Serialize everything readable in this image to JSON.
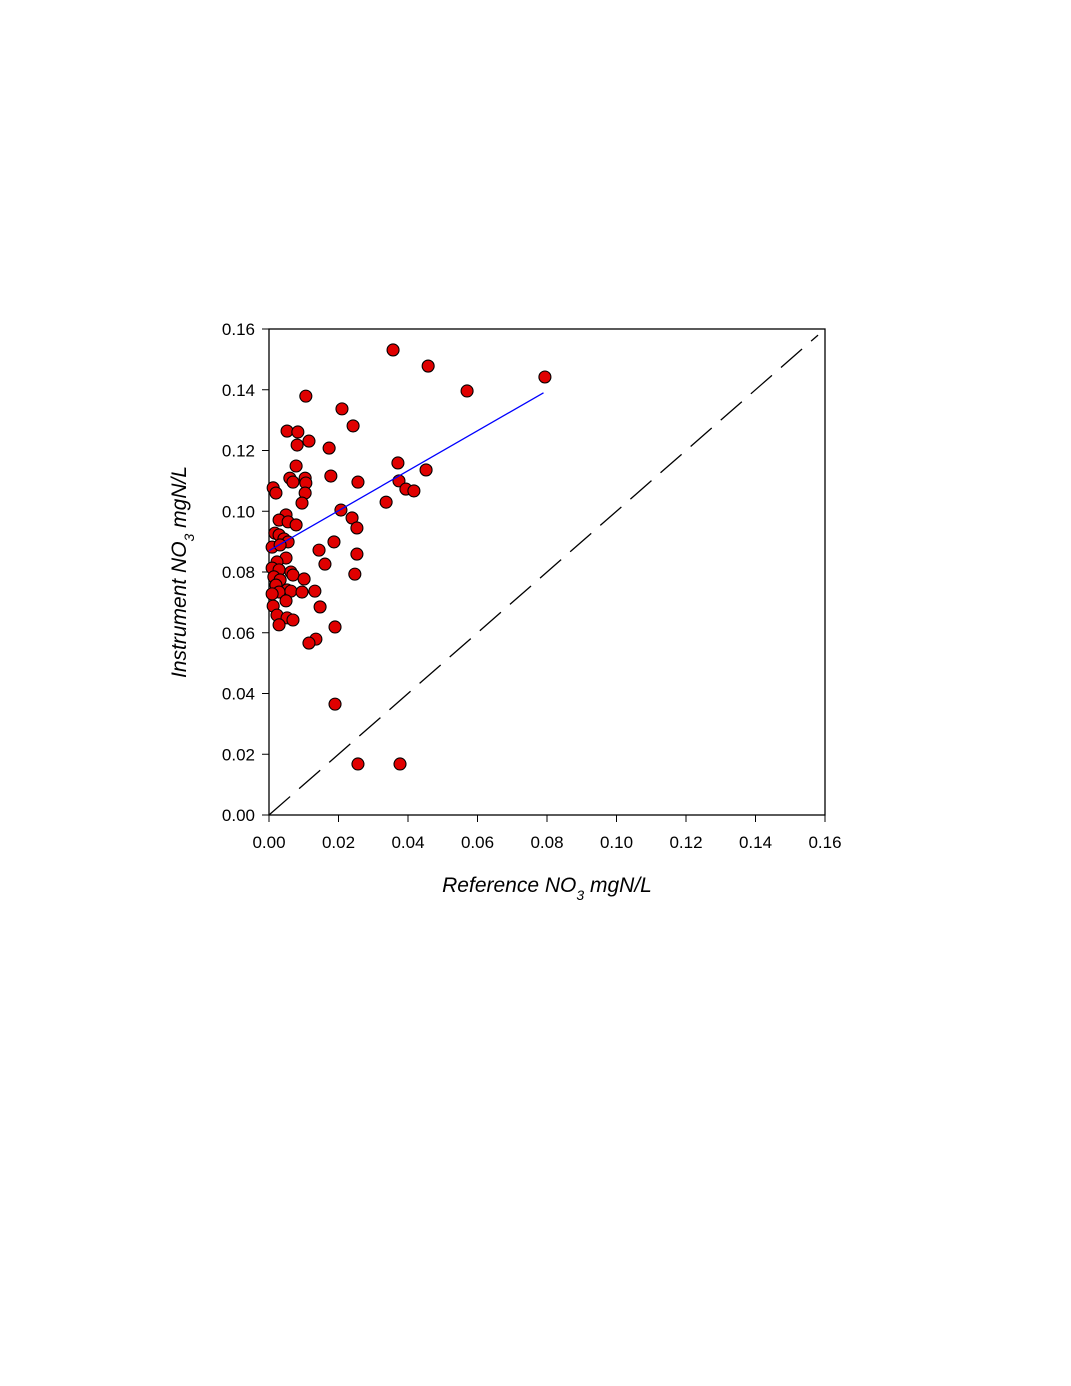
{
  "chart_data": {
    "type": "scatter",
    "xlabel": [
      "Reference NO",
      "3",
      " mgN/L"
    ],
    "ylabel": [
      "Instrument NO",
      "3",
      " mgN/L"
    ],
    "xlim": [
      0,
      0.16
    ],
    "ylim": [
      0,
      0.16
    ],
    "xticks": [
      {
        "value": 0,
        "label": "0.00"
      },
      {
        "value": 0.02,
        "label": "0.02"
      },
      {
        "value": 0.04,
        "label": "0.04"
      },
      {
        "value": 0.06,
        "label": "0.06"
      },
      {
        "value": 0.08,
        "label": "0.08"
      },
      {
        "value": 0.1,
        "label": "0.10"
      },
      {
        "value": 0.12,
        "label": "0.12"
      },
      {
        "value": 0.14,
        "label": "0.14"
      },
      {
        "value": 0.16,
        "label": "0.16"
      }
    ],
    "yticks": [
      {
        "value": 0,
        "label": "0.00"
      },
      {
        "value": 0.02,
        "label": "0.02"
      },
      {
        "value": 0.04,
        "label": "0.04"
      },
      {
        "value": 0.06,
        "label": "0.06"
      },
      {
        "value": 0.08,
        "label": "0.08"
      },
      {
        "value": 0.1,
        "label": "0.10"
      },
      {
        "value": 0.12,
        "label": "0.12"
      },
      {
        "value": 0.14,
        "label": "0.14"
      },
      {
        "value": 0.16,
        "label": "0.16"
      }
    ],
    "grid": false,
    "series": [
      {
        "color": "#e00000",
        "x": [
          0.0357,
          0.0458,
          0.057,
          0.0794,
          0.0106,
          0.021,
          0.0242,
          0.0052,
          0.0083,
          0.0115,
          0.0081,
          0.0173,
          0.0371,
          0.0078,
          0.0452,
          0.006,
          0.0069,
          0.0104,
          0.0106,
          0.0178,
          0.0256,
          0.0374,
          0.0394,
          0.0417,
          0.0012,
          0.002,
          0.0104,
          0.0095,
          0.0337,
          0.0207,
          0.0049,
          0.0239,
          0.0029,
          0.0055,
          0.0078,
          0.0253,
          0.0017,
          0.0029,
          0.0043,
          0.0055,
          0.0187,
          0.0009,
          0.0032,
          0.0144,
          0.0253,
          0.0049,
          0.0023,
          0.0161,
          0.0009,
          0.0029,
          0.0063,
          0.0069,
          0.0247,
          0.0014,
          0.0032,
          0.0101,
          0.002,
          0.0052,
          0.0029,
          0.0063,
          0.0095,
          0.0132,
          0.0009,
          0.0049,
          0.0012,
          0.0147,
          0.0023,
          0.0052,
          0.0069,
          0.0029,
          0.019,
          0.0135,
          0.0115,
          0.019,
          0.0256,
          0.0377
        ],
        "values": [
          0.1531,
          0.1478,
          0.1396,
          0.1442,
          0.1379,
          0.1337,
          0.1281,
          0.1264,
          0.1261,
          0.1231,
          0.1218,
          0.1208,
          0.1159,
          0.1149,
          0.1136,
          0.1109,
          0.1096,
          0.1109,
          0.1093,
          0.1116,
          0.1096,
          0.11,
          0.1073,
          0.1067,
          0.1077,
          0.106,
          0.106,
          0.1027,
          0.103,
          0.1004,
          0.0988,
          0.0978,
          0.0971,
          0.0965,
          0.0955,
          0.0945,
          0.0928,
          0.0922,
          0.0909,
          0.0899,
          0.0899,
          0.0882,
          0.0889,
          0.0872,
          0.0859,
          0.0846,
          0.0833,
          0.0826,
          0.0813,
          0.0807,
          0.08,
          0.079,
          0.0793,
          0.0784,
          0.0774,
          0.0777,
          0.0757,
          0.0741,
          0.0734,
          0.0737,
          0.0734,
          0.0737,
          0.0728,
          0.0705,
          0.0688,
          0.0685,
          0.0658,
          0.0649,
          0.0642,
          0.0626,
          0.0619,
          0.0579,
          0.0566,
          0.0365,
          0.0168,
          0.0168
        ]
      }
    ],
    "fit_line": {
      "color": "#0000ff",
      "x": [
        0.0,
        0.079
      ],
      "values": [
        0.087,
        0.139
      ]
    },
    "reference_line": {
      "color": "#000000",
      "x": [
        0.0,
        0.158
      ],
      "values": [
        0.0,
        0.158
      ]
    }
  }
}
